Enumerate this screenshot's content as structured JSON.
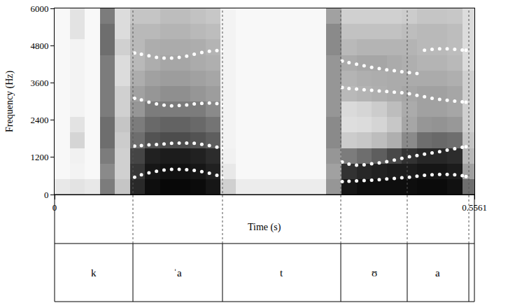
{
  "chart_data": {
    "type": "spectrogram",
    "xlabel": "Time (s)",
    "ylabel": "Frequency (Hz)",
    "xlim": [
      0,
      0.5561
    ],
    "xticks": [
      0,
      0.5561
    ],
    "ylim": [
      0,
      6000
    ],
    "yticks": [
      0,
      1200,
      2400,
      3600,
      4800,
      6000
    ],
    "grid": false,
    "spectrogram": {
      "time_edges": [
        0,
        0.02,
        0.04,
        0.06,
        0.08,
        0.1,
        0.12,
        0.14,
        0.16,
        0.18,
        0.2,
        0.22,
        0.24,
        0.26,
        0.28,
        0.3,
        0.32,
        0.34,
        0.36,
        0.38,
        0.4,
        0.42,
        0.44,
        0.46,
        0.48,
        0.5,
        0.52,
        0.54,
        0.5561
      ],
      "frequency_edges": [
        0,
        500,
        1000,
        1500,
        2000,
        2500,
        3000,
        3500,
        4000,
        4500,
        5000,
        5500,
        6000
      ],
      "zlim": [
        0,
        100
      ],
      "intensity_by_time": [
        [
          10,
          3,
          3,
          3,
          3,
          3,
          3,
          3,
          3,
          3,
          3,
          3
        ],
        [
          12,
          5,
          6,
          18,
          12,
          5,
          5,
          5,
          5,
          5,
          12,
          12
        ],
        [
          10,
          3,
          3,
          3,
          3,
          3,
          3,
          3,
          3,
          3,
          3,
          3
        ],
        [
          55,
          50,
          55,
          60,
          60,
          55,
          55,
          55,
          55,
          60,
          60,
          55
        ],
        [
          25,
          20,
          20,
          22,
          25,
          20,
          20,
          15,
          15,
          20,
          15,
          15
        ],
        [
          85,
          80,
          75,
          60,
          55,
          45,
          40,
          35,
          30,
          30,
          30,
          25
        ],
        [
          95,
          92,
          88,
          70,
          62,
          55,
          45,
          40,
          35,
          35,
          30,
          25
        ],
        [
          97,
          94,
          90,
          72,
          64,
          55,
          48,
          42,
          38,
          36,
          32,
          28
        ],
        [
          97,
          94,
          90,
          72,
          64,
          55,
          48,
          42,
          38,
          36,
          32,
          28
        ],
        [
          96,
          92,
          88,
          70,
          62,
          55,
          45,
          40,
          36,
          35,
          30,
          26
        ],
        [
          92,
          88,
          84,
          66,
          58,
          50,
          42,
          38,
          34,
          32,
          28,
          24
        ],
        [
          20,
          10,
          6,
          5,
          5,
          5,
          5,
          5,
          5,
          5,
          5,
          5
        ],
        [
          8,
          3,
          3,
          3,
          3,
          3,
          3,
          3,
          3,
          3,
          3,
          3
        ],
        [
          8,
          3,
          3,
          3,
          3,
          3,
          3,
          3,
          3,
          3,
          3,
          3
        ],
        [
          8,
          3,
          3,
          3,
          3,
          3,
          3,
          3,
          3,
          3,
          3,
          3
        ],
        [
          8,
          3,
          3,
          3,
          3,
          3,
          3,
          3,
          3,
          3,
          3,
          3
        ],
        [
          8,
          3,
          3,
          3,
          3,
          3,
          3,
          3,
          3,
          3,
          3,
          3
        ],
        [
          8,
          3,
          3,
          3,
          3,
          3,
          3,
          3,
          3,
          3,
          3,
          3
        ],
        [
          45,
          40,
          45,
          50,
          50,
          45,
          45,
          45,
          45,
          50,
          50,
          40
        ],
        [
          92,
          82,
          55,
          22,
          14,
          16,
          30,
          32,
          36,
          30,
          26,
          20
        ],
        [
          95,
          86,
          60,
          24,
          15,
          18,
          32,
          34,
          38,
          32,
          26,
          20
        ],
        [
          95,
          88,
          66,
          28,
          18,
          22,
          34,
          35,
          38,
          32,
          26,
          20
        ],
        [
          95,
          90,
          74,
          34,
          24,
          28,
          36,
          36,
          36,
          32,
          26,
          20
        ],
        [
          95,
          90,
          82,
          50,
          38,
          36,
          38,
          36,
          34,
          32,
          28,
          22
        ],
        [
          96,
          92,
          86,
          60,
          45,
          40,
          40,
          36,
          32,
          30,
          30,
          25
        ],
        [
          96,
          92,
          86,
          62,
          46,
          40,
          40,
          36,
          32,
          30,
          30,
          25
        ],
        [
          94,
          90,
          84,
          60,
          44,
          38,
          38,
          34,
          30,
          28,
          28,
          24
        ],
        [
          60,
          40,
          30,
          25,
          20,
          20,
          20,
          20,
          15,
          15,
          15,
          15
        ]
      ]
    },
    "series": [
      {
        "color": "#ffffff",
        "marker": "circle",
        "x": [
          0.106,
          0.115,
          0.125,
          0.135,
          0.145,
          0.155,
          0.165,
          0.175,
          0.185,
          0.195,
          0.205,
          0.215,
          0.222
        ],
        "values": [
          560,
          640,
          700,
          750,
          790,
          810,
          810,
          800,
          780,
          740,
          690,
          620,
          540
        ]
      },
      {
        "color": "#ffffff",
        "marker": "circle",
        "x": [
          0.106,
          0.115,
          0.125,
          0.135,
          0.145,
          0.155,
          0.165,
          0.175,
          0.185,
          0.195,
          0.205,
          0.215,
          0.222
        ],
        "values": [
          1560,
          1580,
          1600,
          1610,
          1630,
          1650,
          1660,
          1660,
          1650,
          1620,
          1580,
          1530,
          1480
        ]
      },
      {
        "color": "#ffffff",
        "marker": "circle",
        "x": [
          0.106,
          0.115,
          0.125,
          0.135,
          0.145,
          0.155,
          0.165,
          0.175,
          0.185,
          0.195,
          0.205,
          0.215,
          0.222
        ],
        "values": [
          3100,
          3050,
          2980,
          2920,
          2880,
          2860,
          2870,
          2890,
          2920,
          2940,
          2950,
          2930,
          2900
        ]
      },
      {
        "color": "#ffffff",
        "marker": "circle",
        "x": [
          0.106,
          0.115,
          0.125,
          0.135,
          0.145,
          0.155,
          0.165,
          0.175,
          0.185,
          0.195,
          0.205,
          0.215,
          0.222
        ],
        "values": [
          4560,
          4520,
          4470,
          4420,
          4400,
          4400,
          4420,
          4460,
          4520,
          4580,
          4620,
          4640,
          4650
        ]
      },
      {
        "color": "#ffffff",
        "marker": "circle",
        "x": [
          0.381,
          0.39,
          0.4,
          0.41,
          0.42,
          0.43,
          0.44,
          0.45,
          0.46,
          0.47,
          0.48,
          0.49,
          0.5,
          0.51,
          0.52,
          0.53,
          0.54,
          0.545
        ],
        "values": [
          420,
          430,
          440,
          450,
          460,
          480,
          500,
          520,
          540,
          560,
          590,
          620,
          640,
          650,
          650,
          640,
          610,
          580
        ]
      },
      {
        "color": "#ffffff",
        "marker": "circle",
        "x": [
          0.381,
          0.39,
          0.4,
          0.41,
          0.42,
          0.43,
          0.44,
          0.45,
          0.46,
          0.47,
          0.48,
          0.49,
          0.5,
          0.51,
          0.52,
          0.53,
          0.54,
          0.545
        ],
        "values": [
          1050,
          980,
          950,
          960,
          990,
          1020,
          1060,
          1110,
          1170,
          1220,
          1260,
          1300,
          1340,
          1380,
          1430,
          1480,
          1520,
          1540
        ]
      },
      {
        "color": "#ffffff",
        "marker": "circle",
        "x": [
          0.381,
          0.39,
          0.4,
          0.41,
          0.42,
          0.43,
          0.44,
          0.45,
          0.46,
          0.47,
          0.48,
          0.49,
          0.5,
          0.51,
          0.52,
          0.53,
          0.54,
          0.545
        ],
        "values": [
          3450,
          3420,
          3400,
          3380,
          3360,
          3340,
          3320,
          3300,
          3280,
          3250,
          3200,
          3150,
          3100,
          3070,
          3040,
          3010,
          2990,
          2980
        ]
      },
      {
        "color": "#ffffff",
        "marker": "circle",
        "x": [
          0.381,
          0.39,
          0.4,
          0.41,
          0.42,
          0.43,
          0.44,
          0.45,
          0.46,
          0.47,
          0.48,
          0.49,
          0.5,
          0.51,
          0.52,
          0.53,
          0.54,
          0.545
        ],
        "values": [
          4300,
          4250,
          4200,
          4150,
          4100,
          4060,
          4020,
          3990,
          3960,
          3930,
          3900,
          4650,
          4680,
          4700,
          4700,
          4680,
          4660,
          4650
        ]
      }
    ],
    "tier": {
      "boundaries": [
        0.1038,
        0.2224,
        0.3791,
        0.4671,
        0.5487
      ],
      "labels": [
        "k",
        "ˈa",
        "t",
        "ʊ",
        "a"
      ]
    }
  }
}
